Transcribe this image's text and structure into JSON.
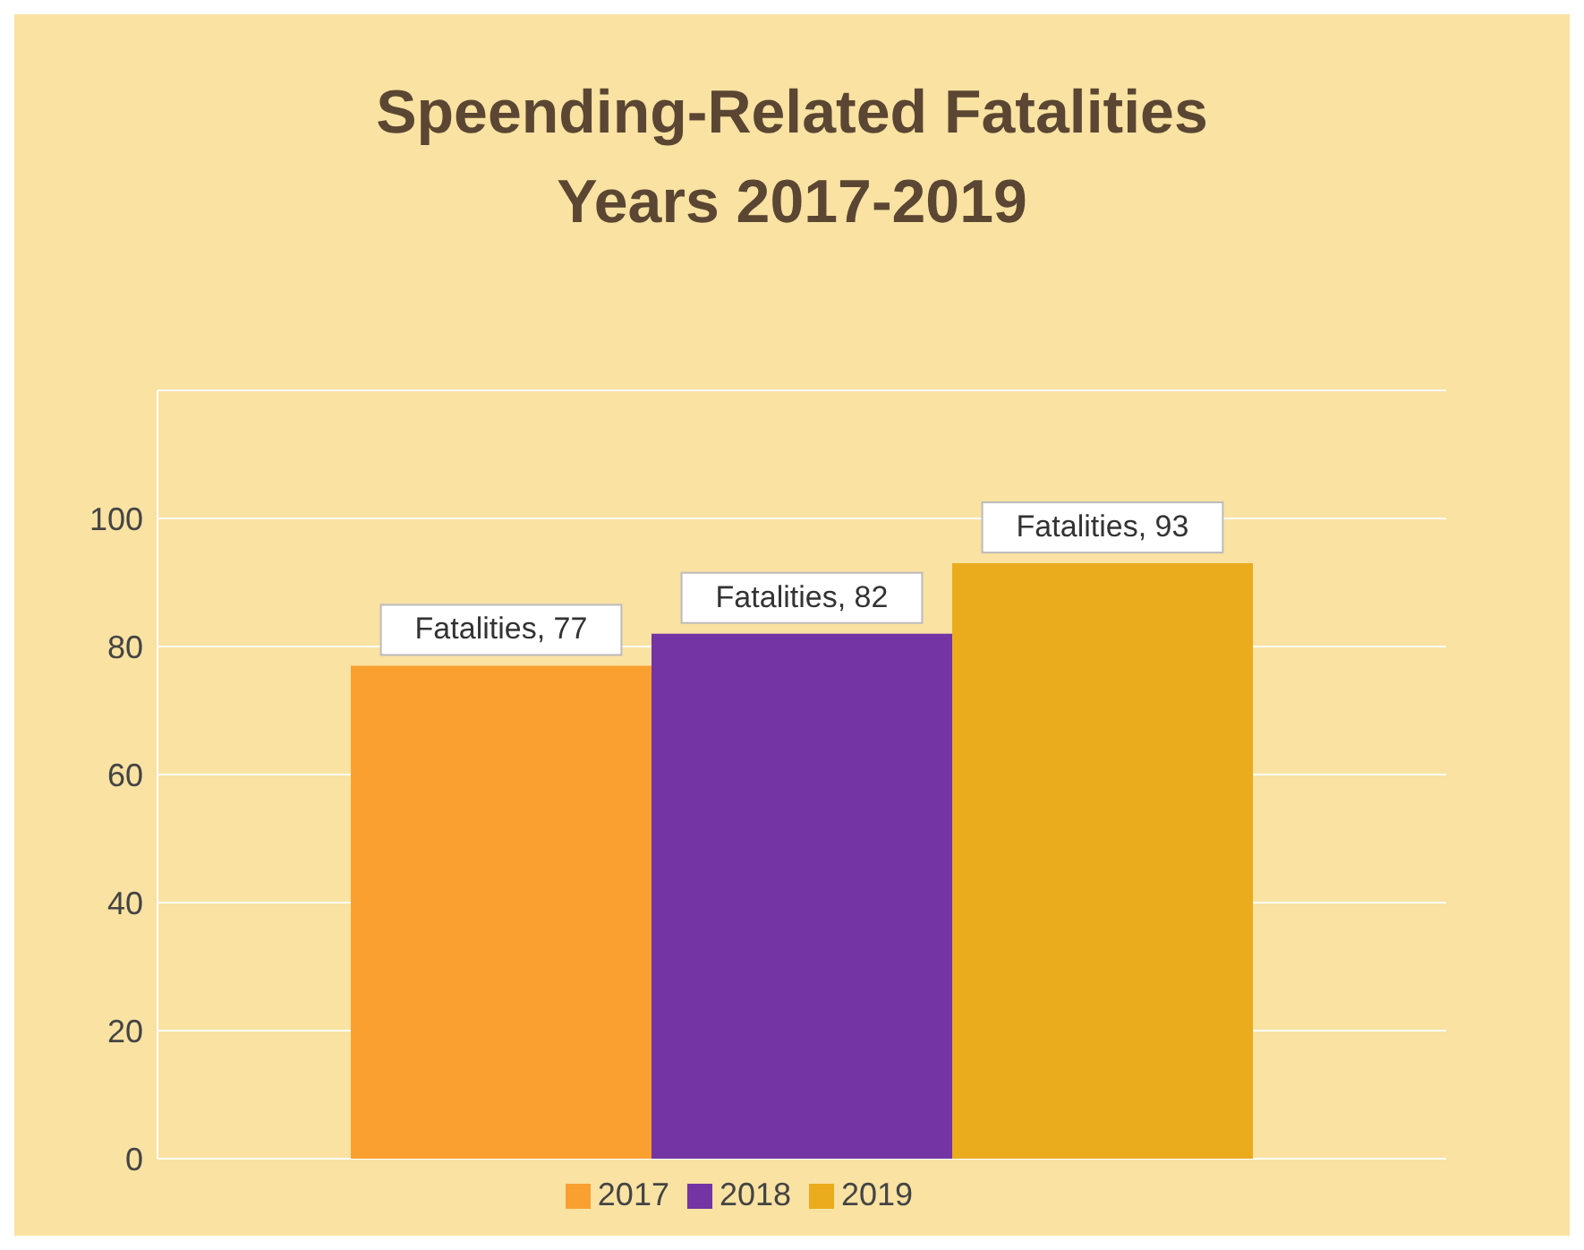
{
  "chart_data": {
    "type": "bar",
    "title": "Speending-Related Fatalities\nYears 2017-2019",
    "categories": [
      null
    ],
    "series": [
      {
        "name": "2017",
        "color": "#f9a030",
        "values": [
          77
        ],
        "value_labels": [
          "Fatalities, 77"
        ]
      },
      {
        "name": "2018",
        "color": "#7434a4",
        "values": [
          82
        ],
        "value_labels": [
          "Fatalities, 82"
        ]
      },
      {
        "name": "2019",
        "color": "#eaab1c",
        "values": [
          93
        ],
        "value_labels": [
          "Fatalities, 93"
        ]
      }
    ],
    "ylim": [
      0,
      120
    ],
    "yticks": [
      0,
      20,
      40,
      60,
      80,
      100,
      {
        "value": 120,
        "label": null
      }
    ],
    "grid": "y",
    "legend": "bottom"
  }
}
